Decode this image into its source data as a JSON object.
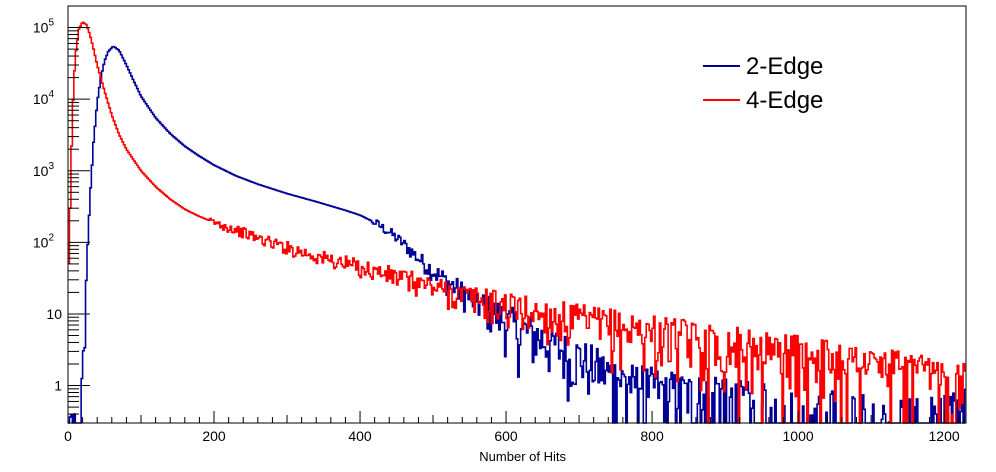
{
  "chart_data": {
    "type": "line",
    "title": "",
    "xlabel": "Number of Hits",
    "ylabel": "",
    "xlim": [
      0,
      1230
    ],
    "ylim": [
      0.3,
      200000
    ],
    "y_scale": "log",
    "grid": false,
    "legend_position": "top-right",
    "x_ticks": [
      0,
      200,
      400,
      600,
      800,
      1000,
      1200
    ],
    "y_ticks": [
      {
        "value": 1,
        "base": "1",
        "exp": ""
      },
      {
        "value": 10,
        "base": "10",
        "exp": ""
      },
      {
        "value": 100,
        "base": "10",
        "exp": "2"
      },
      {
        "value": 1000,
        "base": "10",
        "exp": "3"
      },
      {
        "value": 10000,
        "base": "10",
        "exp": "4"
      },
      {
        "value": 100000,
        "base": "10",
        "exp": "5"
      }
    ],
    "series": [
      {
        "name": "2-Edge",
        "color": "#000099",
        "x": [
          0,
          15,
          20,
          25,
          30,
          35,
          40,
          45,
          50,
          55,
          62,
          70,
          80,
          90,
          100,
          120,
          140,
          160,
          180,
          200,
          230,
          260,
          300,
          340,
          380,
          400,
          420,
          440,
          460,
          480,
          500,
          520,
          540,
          560,
          580,
          600,
          620,
          640,
          660,
          680,
          700,
          720,
          740,
          760,
          800,
          850,
          900,
          950,
          1000,
          1050,
          1100,
          1150,
          1200,
          1225
        ],
        "y": [
          0.3,
          0.3,
          1,
          30,
          400,
          2500,
          9000,
          20000,
          34000,
          46000,
          55000,
          48000,
          30000,
          18000,
          11000,
          5500,
          3300,
          2200,
          1600,
          1200,
          850,
          650,
          480,
          370,
          280,
          240,
          190,
          140,
          95,
          60,
          40,
          28,
          20,
          15,
          11,
          8,
          6,
          5,
          4,
          3,
          2.5,
          2,
          1.5,
          1.2,
          1,
          0.8,
          0.7,
          0.6,
          0.5,
          0.5,
          0.5,
          0.4,
          0.4,
          0.5
        ]
      },
      {
        "name": "4-Edge",
        "color": "#ff0000",
        "x": [
          0,
          3,
          6,
          10,
          15,
          20,
          25,
          30,
          35,
          40,
          50,
          60,
          70,
          80,
          100,
          120,
          140,
          160,
          180,
          200,
          230,
          260,
          300,
          350,
          400,
          450,
          500,
          550,
          600,
          650,
          700,
          750,
          800,
          850,
          900,
          950,
          1000,
          1050,
          1100,
          1150,
          1200,
          1225
        ],
        "y": [
          15,
          300,
          6000,
          40000,
          95000,
          120000,
          110000,
          80000,
          50000,
          30000,
          13000,
          6000,
          3200,
          2000,
          1000,
          600,
          400,
          290,
          230,
          190,
          150,
          115,
          85,
          60,
          45,
          33,
          24,
          17,
          13,
          10,
          8,
          6.5,
          5.5,
          4.5,
          3.8,
          3.3,
          2.8,
          2.4,
          2,
          1.6,
          1.3,
          1.2
        ]
      }
    ]
  }
}
